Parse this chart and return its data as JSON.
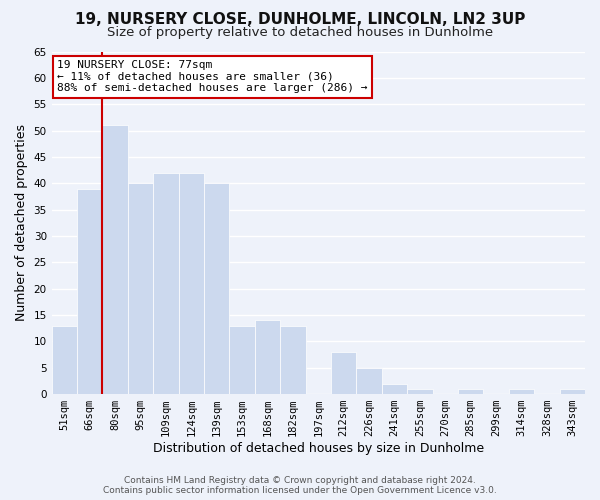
{
  "title": "19, NURSERY CLOSE, DUNHOLME, LINCOLN, LN2 3UP",
  "subtitle": "Size of property relative to detached houses in Dunholme",
  "xlabel": "Distribution of detached houses by size in Dunholme",
  "ylabel": "Number of detached properties",
  "bar_labels": [
    "51sqm",
    "66sqm",
    "80sqm",
    "95sqm",
    "109sqm",
    "124sqm",
    "139sqm",
    "153sqm",
    "168sqm",
    "182sqm",
    "197sqm",
    "212sqm",
    "226sqm",
    "241sqm",
    "255sqm",
    "270sqm",
    "285sqm",
    "299sqm",
    "314sqm",
    "328sqm",
    "343sqm"
  ],
  "bar_values": [
    13,
    39,
    51,
    40,
    42,
    42,
    40,
    13,
    14,
    13,
    0,
    8,
    5,
    2,
    1,
    0,
    1,
    0,
    1,
    0,
    1
  ],
  "bar_color": "#ccd9ee",
  "bar_edge_color": "#ffffff",
  "vline_color": "#cc0000",
  "vline_x_index": 2,
  "ylim": [
    0,
    65
  ],
  "yticks": [
    0,
    5,
    10,
    15,
    20,
    25,
    30,
    35,
    40,
    45,
    50,
    55,
    60,
    65
  ],
  "annotation_title": "19 NURSERY CLOSE: 77sqm",
  "annotation_line1": "← 11% of detached houses are smaller (36)",
  "annotation_line2": "88% of semi-detached houses are larger (286) →",
  "annotation_box_color": "#ffffff",
  "annotation_box_edge": "#cc0000",
  "footer1": "Contains HM Land Registry data © Crown copyright and database right 2024.",
  "footer2": "Contains public sector information licensed under the Open Government Licence v3.0.",
  "bg_color": "#eef2fa",
  "grid_color": "#ffffff",
  "title_fontsize": 11,
  "subtitle_fontsize": 9.5,
  "axis_label_fontsize": 9,
  "tick_fontsize": 7.5,
  "annotation_fontsize": 8,
  "footer_fontsize": 6.5
}
